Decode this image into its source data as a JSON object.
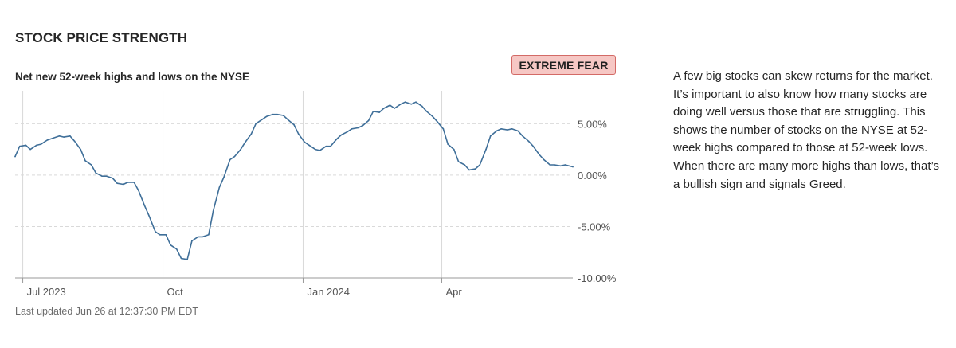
{
  "section_title": "STOCK PRICE STRENGTH",
  "rating": "EXTREME FEAR",
  "last_updated": "Last updated Jun 26 at 12:37:30 PM EDT",
  "description": "A few big stocks can skew returns for the market. It’s important to also know how many stocks are doing well versus those that are struggling. This shows the number of stocks on the NYSE at 52-week highs compared to those at 52-week lows. When there are many more highs than lows, that’s a bullish sign and signals Greed.",
  "colors": {
    "line": "#3f6f99",
    "badge_bg": "#f6c7c4",
    "badge_border": "#d36a66",
    "grid": "#d9d9d9",
    "axis": "#9a9a9a"
  },
  "chart_data": {
    "type": "line",
    "title": "Net new 52-week highs and lows on the NYSE",
    "xlabel": "",
    "ylabel": "",
    "ylim": [
      -10,
      8.2
    ],
    "y_ticks": [
      {
        "value": 5,
        "label": "5.00%"
      },
      {
        "value": 0,
        "label": "0.00%"
      },
      {
        "value": -5,
        "label": "-5.00%"
      },
      {
        "value": -10,
        "label": "-10.00%"
      }
    ],
    "x_range": [
      "2023-06-26",
      "2024-06-26"
    ],
    "x_ticks": [
      {
        "date": "2023-07-01",
        "label": "Jul 2023"
      },
      {
        "date": "2023-10-01",
        "label": "Oct"
      },
      {
        "date": "2024-01-01",
        "label": "Jan 2024"
      },
      {
        "date": "2024-04-01",
        "label": "Apr"
      }
    ],
    "grid": true,
    "series": [
      {
        "values": [
          [
            "2023-06-26",
            1.8
          ],
          [
            "2023-06-29",
            2.8
          ],
          [
            "2023-07-03",
            2.9
          ],
          [
            "2023-07-06",
            2.5
          ],
          [
            "2023-07-10",
            2.9
          ],
          [
            "2023-07-13",
            3.0
          ],
          [
            "2023-07-17",
            3.4
          ],
          [
            "2023-07-21",
            3.6
          ],
          [
            "2023-07-25",
            3.8
          ],
          [
            "2023-07-28",
            3.7
          ],
          [
            "2023-08-01",
            3.8
          ],
          [
            "2023-08-04",
            3.3
          ],
          [
            "2023-08-08",
            2.5
          ],
          [
            "2023-08-11",
            1.4
          ],
          [
            "2023-08-15",
            1.0
          ],
          [
            "2023-08-18",
            0.2
          ],
          [
            "2023-08-22",
            -0.1
          ],
          [
            "2023-08-25",
            -0.1
          ],
          [
            "2023-08-29",
            -0.3
          ],
          [
            "2023-09-01",
            -0.8
          ],
          [
            "2023-09-05",
            -0.9
          ],
          [
            "2023-09-08",
            -0.7
          ],
          [
            "2023-09-12",
            -0.7
          ],
          [
            "2023-09-15",
            -1.5
          ],
          [
            "2023-09-19",
            -3.0
          ],
          [
            "2023-09-22",
            -4.0
          ],
          [
            "2023-09-26",
            -5.5
          ],
          [
            "2023-09-29",
            -5.8
          ],
          [
            "2023-10-03",
            -5.8
          ],
          [
            "2023-10-06",
            -6.8
          ],
          [
            "2023-10-10",
            -7.2
          ],
          [
            "2023-10-13",
            -8.1
          ],
          [
            "2023-10-17",
            -8.2
          ],
          [
            "2023-10-20",
            -6.4
          ],
          [
            "2023-10-24",
            -6.0
          ],
          [
            "2023-10-27",
            -6.0
          ],
          [
            "2023-10-31",
            -5.8
          ],
          [
            "2023-11-03",
            -3.5
          ],
          [
            "2023-11-07",
            -1.2
          ],
          [
            "2023-11-10",
            -0.2
          ],
          [
            "2023-11-14",
            1.5
          ],
          [
            "2023-11-17",
            1.8
          ],
          [
            "2023-11-21",
            2.5
          ],
          [
            "2023-11-24",
            3.2
          ],
          [
            "2023-11-28",
            4.0
          ],
          [
            "2023-12-01",
            5.0
          ],
          [
            "2023-12-05",
            5.4
          ],
          [
            "2023-12-08",
            5.7
          ],
          [
            "2023-12-12",
            5.9
          ],
          [
            "2023-12-15",
            5.9
          ],
          [
            "2023-12-19",
            5.8
          ],
          [
            "2023-12-22",
            5.4
          ],
          [
            "2023-12-26",
            4.9
          ],
          [
            "2023-12-29",
            4.0
          ],
          [
            "2024-01-02",
            3.2
          ],
          [
            "2024-01-05",
            2.9
          ],
          [
            "2024-01-09",
            2.5
          ],
          [
            "2024-01-12",
            2.4
          ],
          [
            "2024-01-16",
            2.8
          ],
          [
            "2024-01-19",
            2.8
          ],
          [
            "2024-01-23",
            3.5
          ],
          [
            "2024-01-26",
            3.9
          ],
          [
            "2024-01-30",
            4.2
          ],
          [
            "2024-02-02",
            4.5
          ],
          [
            "2024-02-06",
            4.6
          ],
          [
            "2024-02-09",
            4.8
          ],
          [
            "2024-02-13",
            5.3
          ],
          [
            "2024-02-16",
            6.2
          ],
          [
            "2024-02-20",
            6.1
          ],
          [
            "2024-02-23",
            6.5
          ],
          [
            "2024-02-27",
            6.8
          ],
          [
            "2024-03-01",
            6.5
          ],
          [
            "2024-03-05",
            6.9
          ],
          [
            "2024-03-08",
            7.1
          ],
          [
            "2024-03-12",
            6.9
          ],
          [
            "2024-03-15",
            7.1
          ],
          [
            "2024-03-19",
            6.7
          ],
          [
            "2024-03-22",
            6.2
          ],
          [
            "2024-03-26",
            5.7
          ],
          [
            "2024-03-29",
            5.2
          ],
          [
            "2024-04-02",
            4.5
          ],
          [
            "2024-04-05",
            3.0
          ],
          [
            "2024-04-09",
            2.5
          ],
          [
            "2024-04-12",
            1.3
          ],
          [
            "2024-04-16",
            1.0
          ],
          [
            "2024-04-19",
            0.5
          ],
          [
            "2024-04-23",
            0.6
          ],
          [
            "2024-04-26",
            1.0
          ],
          [
            "2024-04-30",
            2.5
          ],
          [
            "2024-05-03",
            3.8
          ],
          [
            "2024-05-07",
            4.3
          ],
          [
            "2024-05-10",
            4.5
          ],
          [
            "2024-05-14",
            4.4
          ],
          [
            "2024-05-17",
            4.5
          ],
          [
            "2024-05-21",
            4.3
          ],
          [
            "2024-05-24",
            3.8
          ],
          [
            "2024-05-28",
            3.3
          ],
          [
            "2024-05-31",
            2.8
          ],
          [
            "2024-06-04",
            2.0
          ],
          [
            "2024-06-07",
            1.5
          ],
          [
            "2024-06-11",
            1.0
          ],
          [
            "2024-06-14",
            1.0
          ],
          [
            "2024-06-18",
            0.9
          ],
          [
            "2024-06-21",
            1.0
          ],
          [
            "2024-06-26",
            0.8
          ]
        ]
      }
    ]
  }
}
